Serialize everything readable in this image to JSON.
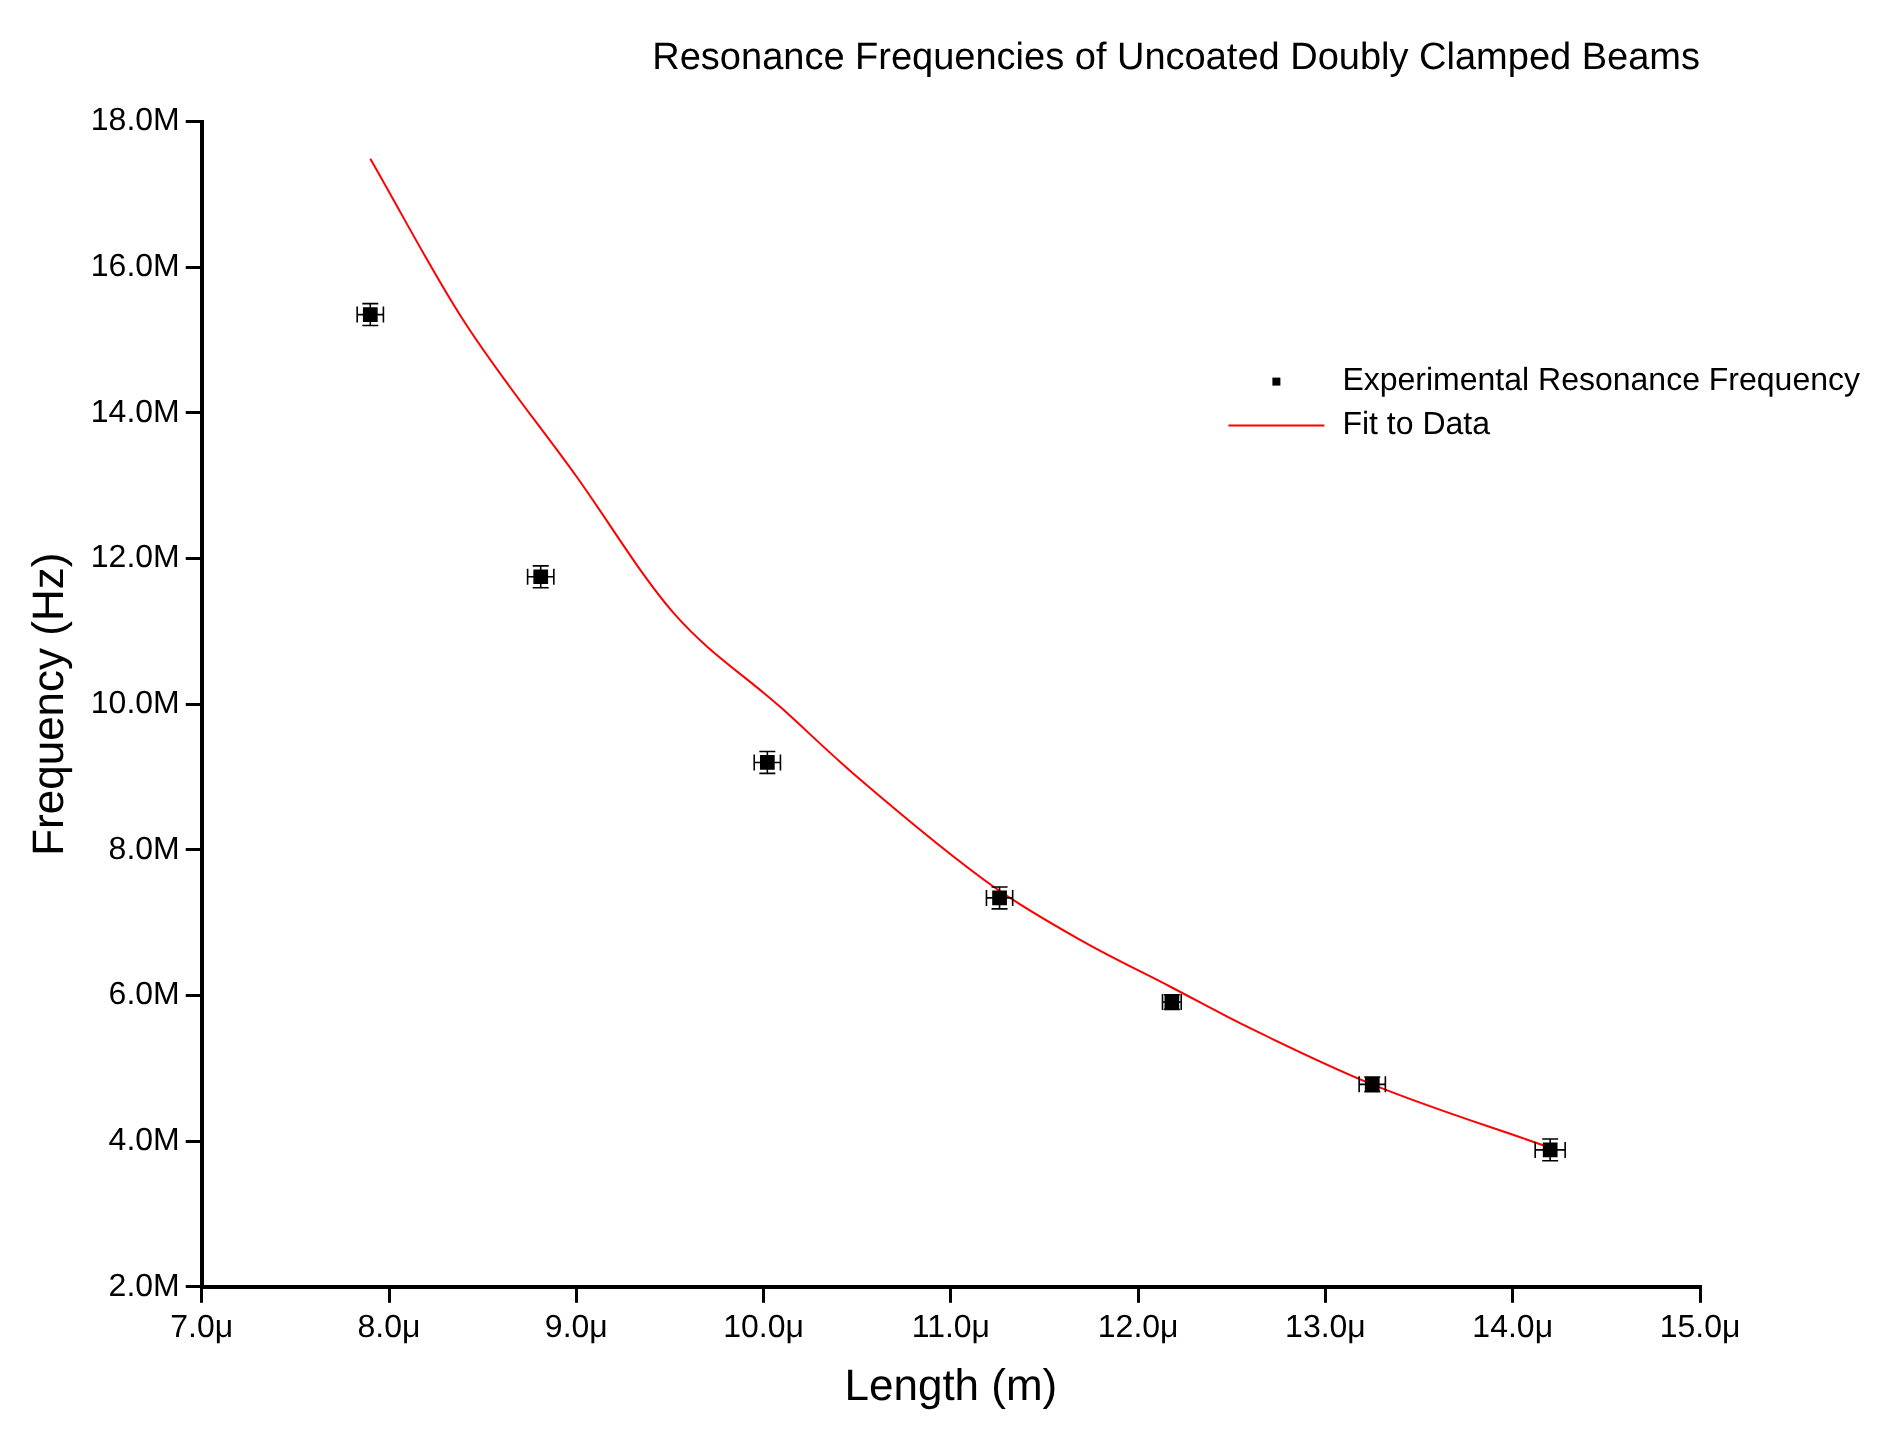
{
  "chart_data": {
    "type": "scatter",
    "title": "Resonance Frequencies of Uncoated Doubly Clamped Beams",
    "xlabel": "Length (m)",
    "ylabel": "Frequency (Hz)",
    "xlim": [
      7,
      15
    ],
    "xticks": [
      {
        "value": 7,
        "label": "7.0μ"
      },
      {
        "value": 8,
        "label": "8.0μ"
      },
      {
        "value": 9,
        "label": "9.0μ"
      },
      {
        "value": 10,
        "label": "10.0μ"
      },
      {
        "value": 11,
        "label": "11.0μ"
      },
      {
        "value": 12,
        "label": "12.0μ"
      },
      {
        "value": 13,
        "label": "13.0μ"
      },
      {
        "value": 14,
        "label": "14.0μ"
      },
      {
        "value": 15,
        "label": "15.0μ"
      }
    ],
    "ylim": [
      2,
      18
    ],
    "yticks": [
      {
        "value": 2,
        "label": "2.0M"
      },
      {
        "value": 4,
        "label": "4.0M"
      },
      {
        "value": 6,
        "label": "6.0M"
      },
      {
        "value": 8,
        "label": "8.0M"
      },
      {
        "value": 10,
        "label": "10.0M"
      },
      {
        "value": 12,
        "label": "12.0M"
      },
      {
        "value": 14,
        "label": "14.0M"
      },
      {
        "value": 16,
        "label": "16.0M"
      },
      {
        "value": 18,
        "label": "18.0M"
      }
    ],
    "grid": false,
    "legend": "top right",
    "marker": "square",
    "series": [
      {
        "name": "Experimental Resonance Frequency",
        "type": "scatter",
        "color": "#000000",
        "x": [
          7.9,
          8.81,
          10.02,
          11.26,
          12.18,
          13.25,
          14.2
        ],
        "values": [
          15.35,
          11.75,
          9.2,
          7.34,
          5.91,
          4.78,
          3.88
        ],
        "errors": [
          0.15,
          0.15,
          0.15,
          0.15,
          0.1,
          0.1,
          0.15
        ],
        "xerrors": [
          0.07,
          0.07,
          0.07,
          0.07,
          0.05,
          0.07,
          0.08
        ]
      },
      {
        "name": "Fit to Data",
        "type": "line",
        "color": "#ff0000",
        "marker": "none",
        "x": [
          7.9,
          8.39,
          9.0,
          9.52,
          10.09,
          10.5,
          11.23,
          11.7,
          12.18,
          12.56,
          13.25,
          14.2
        ],
        "values": [
          17.49,
          15.3,
          13.13,
          11.25,
          9.96,
          9.0,
          7.49,
          6.75,
          6.11,
          5.6,
          4.78,
          3.91
        ]
      }
    ]
  }
}
